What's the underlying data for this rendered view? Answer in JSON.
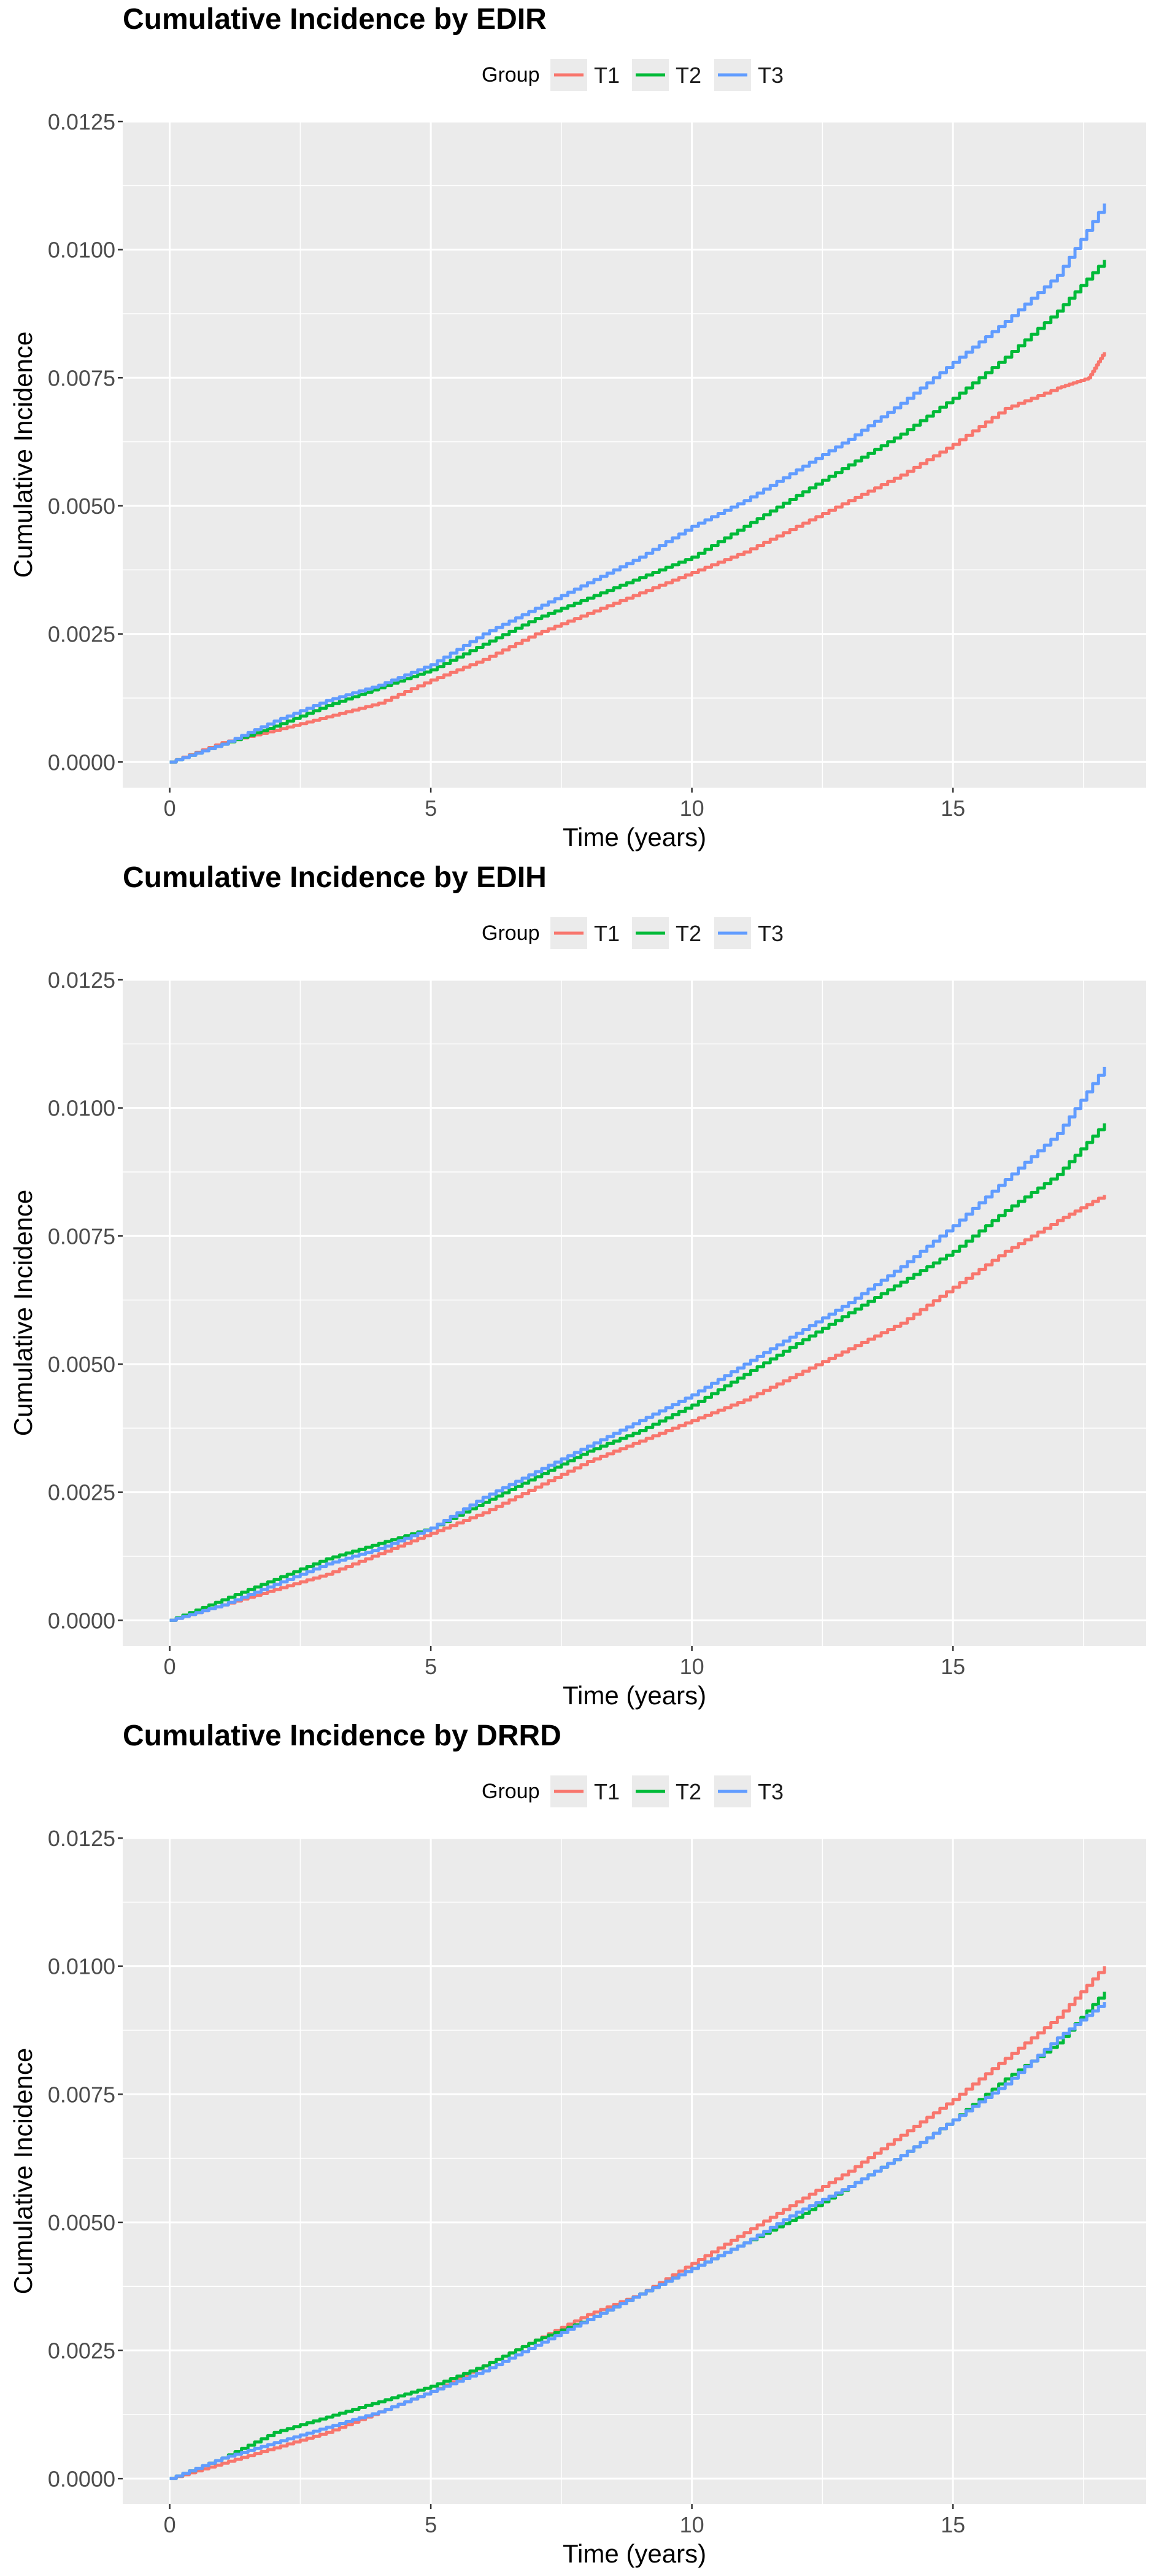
{
  "chart_data": [
    {
      "type": "line",
      "title": "Cumulative Incidence by EDIR",
      "xlabel": "Time (years)",
      "ylabel": "Cumulative Incidence",
      "legend_title": "Group",
      "legend_position": "top",
      "grid": true,
      "xlim": [
        -0.9,
        18.7
      ],
      "ylim": [
        -0.0005,
        0.0125
      ],
      "x_ticks": [
        0,
        5,
        10,
        15
      ],
      "x_tick_labels": [
        "0",
        "5",
        "10",
        "15"
      ],
      "y_ticks": [
        0,
        0.0025,
        0.005,
        0.0075,
        0.01,
        0.0125
      ],
      "y_tick_labels": [
        "0.0000",
        "0.0025",
        "0.0050",
        "0.0075",
        "0.0100",
        "0.0125"
      ],
      "series": [
        {
          "name": "T1",
          "color": "#F8766D",
          "x": [
            0,
            1,
            2,
            3,
            4,
            5,
            6,
            7,
            8,
            9,
            10,
            11,
            12,
            13,
            14,
            15,
            16,
            17,
            17.6,
            17.9
          ],
          "y": [
            0,
            0.00038,
            0.00062,
            0.00088,
            0.00115,
            0.0016,
            0.002,
            0.0025,
            0.0029,
            0.0033,
            0.0037,
            0.0041,
            0.0046,
            0.0051,
            0.0056,
            0.0062,
            0.0069,
            0.0073,
            0.0075,
            0.008
          ]
        },
        {
          "name": "T2",
          "color": "#00BA38",
          "x": [
            0,
            1,
            2,
            3,
            4,
            5,
            6,
            7,
            8,
            9,
            10,
            11,
            12,
            13,
            14,
            15,
            16,
            17,
            17.9
          ],
          "y": [
            0,
            0.00035,
            0.0007,
            0.0011,
            0.00145,
            0.0018,
            0.0023,
            0.0028,
            0.0032,
            0.0036,
            0.004,
            0.0046,
            0.0052,
            0.0058,
            0.0064,
            0.0071,
            0.0079,
            0.0088,
            0.0098
          ]
        },
        {
          "name": "T3",
          "color": "#619CFF",
          "x": [
            0,
            1,
            2,
            3,
            4,
            5,
            6,
            7,
            8,
            9,
            10,
            11,
            12,
            13,
            14,
            15,
            16,
            17,
            17.9
          ],
          "y": [
            0,
            0.00035,
            0.0008,
            0.0012,
            0.0015,
            0.0019,
            0.0025,
            0.003,
            0.0035,
            0.004,
            0.0046,
            0.0051,
            0.0057,
            0.0063,
            0.007,
            0.0078,
            0.0086,
            0.0095,
            0.0109
          ]
        }
      ]
    },
    {
      "type": "line",
      "title": "Cumulative Incidence by EDIH",
      "xlabel": "Time (years)",
      "ylabel": "Cumulative Incidence",
      "legend_title": "Group",
      "legend_position": "top",
      "grid": true,
      "xlim": [
        -0.9,
        18.7
      ],
      "ylim": [
        -0.0005,
        0.0125
      ],
      "x_ticks": [
        0,
        5,
        10,
        15
      ],
      "x_tick_labels": [
        "0",
        "5",
        "10",
        "15"
      ],
      "y_ticks": [
        0,
        0.0025,
        0.005,
        0.0075,
        0.01,
        0.0125
      ],
      "y_tick_labels": [
        "0.0000",
        "0.0025",
        "0.0050",
        "0.0075",
        "0.0100",
        "0.0125"
      ],
      "series": [
        {
          "name": "T1",
          "color": "#F8766D",
          "x": [
            0,
            1,
            2,
            3,
            4,
            5,
            6,
            7,
            8,
            9,
            10,
            11,
            12,
            13,
            14,
            15,
            16,
            17,
            17.9
          ],
          "y": [
            0,
            0.0003,
            0.0006,
            0.0009,
            0.0013,
            0.0017,
            0.0021,
            0.0026,
            0.0031,
            0.0035,
            0.0039,
            0.0043,
            0.0048,
            0.0053,
            0.0058,
            0.0065,
            0.0072,
            0.0078,
            0.0083
          ]
        },
        {
          "name": "T2",
          "color": "#00BA38",
          "x": [
            0,
            1,
            2,
            3,
            4,
            5,
            6,
            7,
            8,
            9,
            10,
            11,
            12,
            13,
            14,
            15,
            16,
            17,
            17.9
          ],
          "y": [
            0,
            0.0004,
            0.0008,
            0.0012,
            0.0015,
            0.0018,
            0.0023,
            0.0028,
            0.0033,
            0.0037,
            0.0042,
            0.0048,
            0.0054,
            0.006,
            0.0066,
            0.0072,
            0.008,
            0.0087,
            0.0097
          ]
        },
        {
          "name": "T3",
          "color": "#619CFF",
          "x": [
            0,
            1,
            2,
            3,
            4,
            5,
            6,
            7,
            8,
            9,
            10,
            11,
            12,
            13,
            14,
            15,
            16,
            17,
            17.9
          ],
          "y": [
            0,
            0.0003,
            0.0007,
            0.0011,
            0.0014,
            0.0018,
            0.0024,
            0.0029,
            0.0034,
            0.0039,
            0.0044,
            0.005,
            0.0056,
            0.0062,
            0.0069,
            0.0077,
            0.0086,
            0.0095,
            0.0108
          ]
        }
      ]
    },
    {
      "type": "line",
      "title": "Cumulative Incidence by DRRD",
      "xlabel": "Time (years)",
      "ylabel": "Cumulative Incidence",
      "legend_title": "Group",
      "legend_position": "top",
      "grid": true,
      "xlim": [
        -0.9,
        18.7
      ],
      "ylim": [
        -0.0005,
        0.0125
      ],
      "x_ticks": [
        0,
        5,
        10,
        15
      ],
      "x_tick_labels": [
        "0",
        "5",
        "10",
        "15"
      ],
      "y_ticks": [
        0,
        0.0025,
        0.005,
        0.0075,
        0.01,
        0.0125
      ],
      "y_tick_labels": [
        "0.0000",
        "0.0025",
        "0.0050",
        "0.0075",
        "0.0100",
        "0.0125"
      ],
      "series": [
        {
          "name": "T1",
          "color": "#F8766D",
          "x": [
            0,
            1,
            2,
            3,
            4,
            5,
            6,
            7,
            8,
            9,
            10,
            11,
            12,
            13,
            14,
            15,
            16,
            17,
            17.9
          ],
          "y": [
            0,
            0.0003,
            0.0006,
            0.0009,
            0.0013,
            0.0017,
            0.0022,
            0.0027,
            0.0032,
            0.0036,
            0.0042,
            0.0048,
            0.0054,
            0.006,
            0.0067,
            0.0074,
            0.0082,
            0.009,
            0.01
          ]
        },
        {
          "name": "T2",
          "color": "#00BA38",
          "x": [
            0,
            1,
            2,
            3,
            4,
            5,
            6,
            7,
            8,
            9,
            10,
            11,
            12,
            13,
            14,
            15,
            16,
            17,
            17.9
          ],
          "y": [
            0,
            0.0004,
            0.0009,
            0.0012,
            0.0015,
            0.0018,
            0.0022,
            0.0027,
            0.0031,
            0.0036,
            0.0041,
            0.0046,
            0.0051,
            0.0057,
            0.0063,
            0.007,
            0.0078,
            0.0085,
            0.0095
          ]
        },
        {
          "name": "T3",
          "color": "#619CFF",
          "x": [
            0,
            1,
            2,
            3,
            4,
            5,
            6,
            7,
            8,
            9,
            10,
            11,
            12,
            13,
            14,
            15,
            16,
            17,
            17.9
          ],
          "y": [
            0,
            0.0004,
            0.0007,
            0.001,
            0.0013,
            0.0017,
            0.0021,
            0.0026,
            0.0031,
            0.0036,
            0.0041,
            0.0046,
            0.0052,
            0.0057,
            0.0063,
            0.007,
            0.0077,
            0.0086,
            0.0093
          ]
        }
      ]
    }
  ]
}
